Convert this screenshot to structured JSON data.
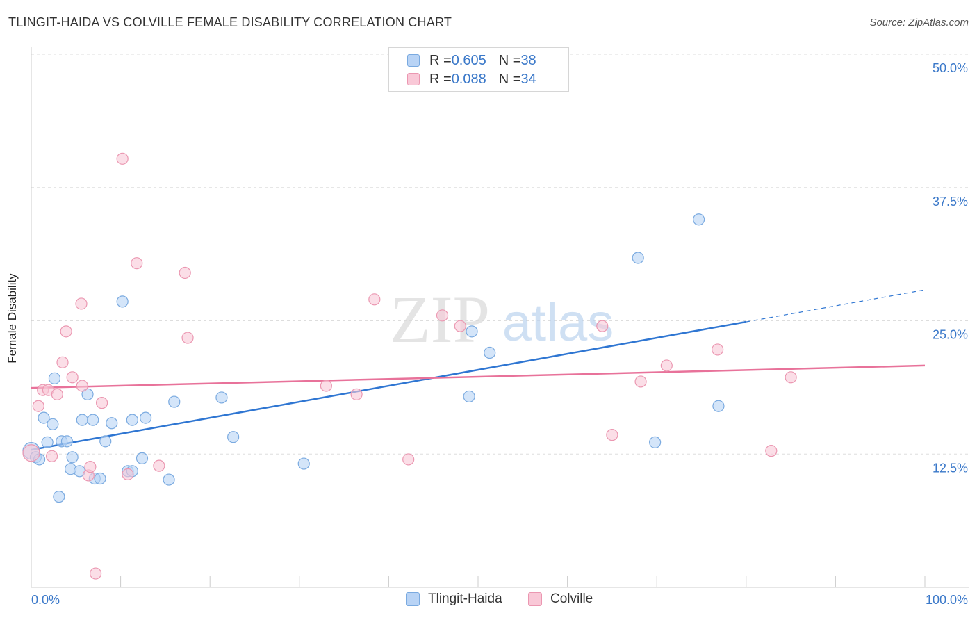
{
  "header": {
    "title": "TLINGIT-HAIDA VS COLVILLE FEMALE DISABILITY CORRELATION CHART",
    "source": "Source: ZipAtlas.com"
  },
  "watermark": {
    "zip": "ZIP",
    "atlas": "atlas"
  },
  "legend": {
    "series": [
      {
        "r_label": "R = ",
        "r_value": "0.605",
        "n_label": "N = ",
        "n_value": "38"
      },
      {
        "r_label": "R = ",
        "r_value": "0.088",
        "n_label": "N = ",
        "n_value": "34"
      }
    ]
  },
  "colors": {
    "blue_fill": "#b8d3f5",
    "blue_stroke": "#7aaae0",
    "blue_line": "#2f76d2",
    "pink_fill": "#f9c8d7",
    "pink_stroke": "#eb97b1",
    "pink_line": "#e8729a",
    "axis_label_blue": "#3a78c9",
    "grid": "#dddddd"
  },
  "chart_data": {
    "type": "scatter",
    "title": "TLINGIT-HAIDA VS COLVILLE FEMALE DISABILITY CORRELATION CHART",
    "xlabel": "",
    "ylabel": "Female Disability",
    "xlim": [
      0,
      100
    ],
    "ylim": [
      0,
      50
    ],
    "x_tick_labels": [
      "0.0%",
      "100.0%"
    ],
    "y_ticks": [
      12.5,
      25.0,
      37.5,
      50.0
    ],
    "y_tick_labels": [
      "12.5%",
      "25.0%",
      "37.5%",
      "50.0%"
    ],
    "grid": "horizontal-dashed",
    "legend_placement": "top-center",
    "series": [
      {
        "name": "Tlingit-Haida",
        "color": "blue",
        "points": [
          [
            0.0,
            12.8
          ],
          [
            0.5,
            12.2
          ],
          [
            0.9,
            12.0
          ],
          [
            1.4,
            15.9
          ],
          [
            1.8,
            13.6
          ],
          [
            2.4,
            15.3
          ],
          [
            2.6,
            19.6
          ],
          [
            3.1,
            8.5
          ],
          [
            3.4,
            13.7
          ],
          [
            4.0,
            13.7
          ],
          [
            4.6,
            12.2
          ],
          [
            4.4,
            11.1
          ],
          [
            5.4,
            10.9
          ],
          [
            5.7,
            15.7
          ],
          [
            6.3,
            18.1
          ],
          [
            6.9,
            15.7
          ],
          [
            7.1,
            10.2
          ],
          [
            7.7,
            10.2
          ],
          [
            8.3,
            13.7
          ],
          [
            9.0,
            15.4
          ],
          [
            10.2,
            26.8
          ],
          [
            10.8,
            10.9
          ],
          [
            11.3,
            10.9
          ],
          [
            11.3,
            15.7
          ],
          [
            12.4,
            12.1
          ],
          [
            12.8,
            15.9
          ],
          [
            15.4,
            10.1
          ],
          [
            16.0,
            17.4
          ],
          [
            21.3,
            17.8
          ],
          [
            22.6,
            14.1
          ],
          [
            30.5,
            11.6
          ],
          [
            49.0,
            17.9
          ],
          [
            49.3,
            24.0
          ],
          [
            51.3,
            22.0
          ],
          [
            67.9,
            30.9
          ],
          [
            69.8,
            13.6
          ],
          [
            74.7,
            34.5
          ],
          [
            76.9,
            17.0
          ]
        ],
        "trend": {
          "x_start": 0,
          "y_start": 12.9,
          "x_solid_end": 80,
          "y_solid_end": 24.9,
          "x_dashed_end": 100,
          "y_dashed_end": 27.9
        }
      },
      {
        "name": "Colville",
        "color": "pink",
        "points": [
          [
            0.0,
            12.6
          ],
          [
            0.8,
            17.0
          ],
          [
            1.3,
            18.5
          ],
          [
            1.9,
            18.5
          ],
          [
            2.3,
            12.3
          ],
          [
            2.9,
            18.1
          ],
          [
            3.5,
            21.1
          ],
          [
            3.9,
            24.0
          ],
          [
            4.6,
            19.7
          ],
          [
            5.6,
            26.6
          ],
          [
            5.7,
            18.9
          ],
          [
            6.4,
            10.5
          ],
          [
            6.6,
            11.3
          ],
          [
            7.2,
            1.3
          ],
          [
            7.9,
            17.3
          ],
          [
            10.2,
            40.2
          ],
          [
            10.8,
            10.6
          ],
          [
            11.8,
            30.4
          ],
          [
            14.3,
            11.4
          ],
          [
            17.2,
            29.5
          ],
          [
            17.5,
            23.4
          ],
          [
            33.0,
            18.9
          ],
          [
            36.4,
            18.1
          ],
          [
            38.4,
            27.0
          ],
          [
            42.2,
            12.0
          ],
          [
            46.0,
            25.5
          ],
          [
            48.0,
            24.5
          ],
          [
            65.0,
            14.3
          ],
          [
            63.9,
            24.5
          ],
          [
            68.2,
            19.3
          ],
          [
            71.1,
            20.8
          ],
          [
            76.8,
            22.3
          ],
          [
            82.8,
            12.8
          ],
          [
            85.0,
            19.7
          ]
        ],
        "trend": {
          "x_start": 0,
          "y_start": 18.7,
          "x_end": 100,
          "y_end": 20.8
        }
      }
    ]
  },
  "bottom_legend": {
    "items": [
      "Tlingit-Haida",
      "Colville"
    ]
  }
}
